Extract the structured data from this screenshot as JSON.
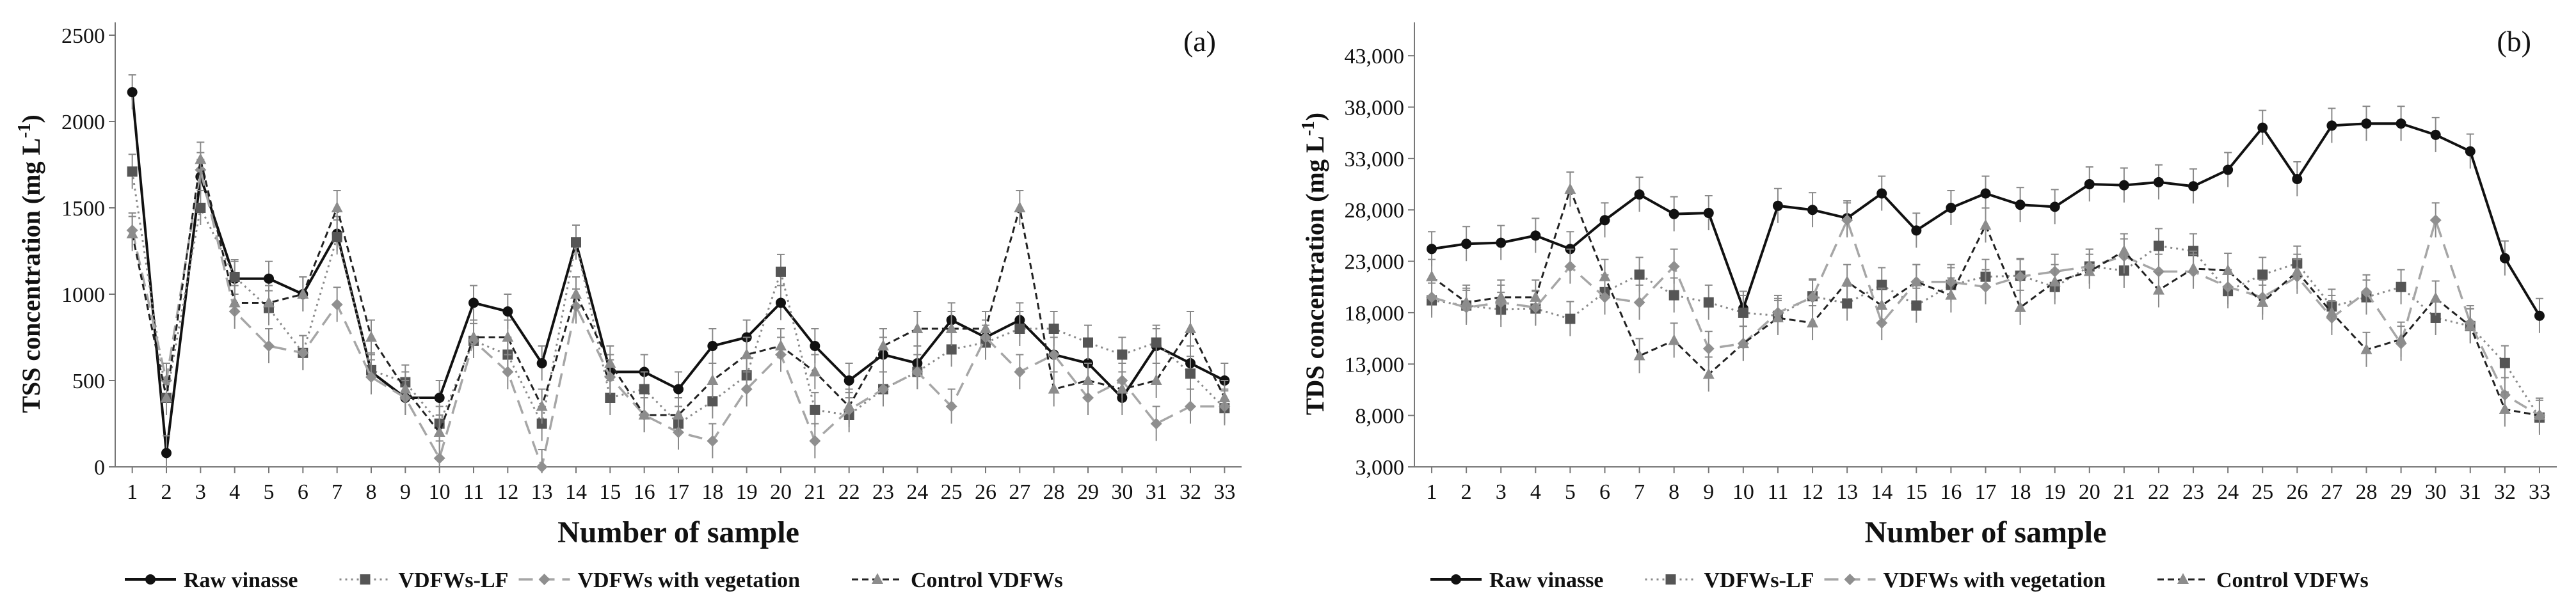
{
  "chart_data": [
    {
      "type": "line",
      "panel_label": "(a)",
      "xlabel": "Number of sample",
      "ylabel": "TSS concentration (mg L",
      "ylabel_sup": "-1",
      "ylabel_close": ")",
      "ylim": [
        0,
        2500
      ],
      "yticks": [
        0,
        500,
        1000,
        1500,
        2000,
        2500
      ],
      "ytick_labels": [
        "0",
        "500",
        "1000",
        "1500",
        "2000",
        "2500"
      ],
      "categories": [
        "1",
        "2",
        "3",
        "4",
        "5",
        "6",
        "7",
        "8",
        "9",
        "10",
        "11",
        "12",
        "13",
        "14",
        "15",
        "16",
        "17",
        "18",
        "19",
        "20",
        "21",
        "22",
        "23",
        "24",
        "25",
        "26",
        "27",
        "28",
        "29",
        "30",
        "31",
        "32",
        "33"
      ],
      "grid": false,
      "legend_position": "bottom",
      "series": [
        {
          "name": "Raw vinasse",
          "values": [
            2170,
            80,
            1680,
            1090,
            1090,
            1000,
            1350,
            550,
            400,
            400,
            950,
            900,
            600,
            1300,
            550,
            550,
            450,
            700,
            750,
            950,
            700,
            500,
            650,
            600,
            850,
            750,
            850,
            650,
            600,
            400,
            700,
            600,
            500
          ]
        },
        {
          "name": "VDFWs-LF",
          "values": [
            1710,
            400,
            1500,
            1100,
            920,
            660,
            1330,
            560,
            490,
            250,
            730,
            650,
            250,
            1300,
            400,
            450,
            250,
            380,
            530,
            1130,
            330,
            300,
            450,
            550,
            680,
            720,
            800,
            800,
            720,
            650,
            720,
            540,
            340
          ]
        },
        {
          "name": "VDFWs with vegetation",
          "values": [
            1370,
            500,
            1720,
            900,
            700,
            660,
            940,
            520,
            400,
            50,
            730,
            550,
            0,
            930,
            520,
            300,
            200,
            150,
            450,
            650,
            150,
            330,
            450,
            550,
            350,
            750,
            550,
            650,
            400,
            500,
            250,
            350,
            350
          ]
        },
        {
          "name": "Control VDFWs",
          "values": [
            1350,
            400,
            1780,
            950,
            950,
            1000,
            1500,
            750,
            450,
            200,
            750,
            750,
            350,
            1000,
            600,
            300,
            300,
            500,
            650,
            700,
            550,
            350,
            700,
            800,
            800,
            800,
            1500,
            450,
            500,
            450,
            500,
            800,
            400
          ]
        }
      ]
    },
    {
      "type": "line",
      "panel_label": "(b)",
      "xlabel": "Number of sample",
      "ylabel": "TDS concentration (mg L",
      "ylabel_sup": "-1",
      "ylabel_close": ")",
      "ylim": [
        3000,
        45000
      ],
      "yticks": [
        3000,
        8000,
        13000,
        18000,
        23000,
        28000,
        33000,
        38000,
        43000
      ],
      "ytick_labels": [
        "3,000",
        "8,000",
        "13,000",
        "18,000",
        "23,000",
        "28,000",
        "33,000",
        "38,000",
        "43,000"
      ],
      "categories": [
        "1",
        "2",
        "3",
        "4",
        "5",
        "6",
        "7",
        "8",
        "9",
        "10",
        "11",
        "12",
        "13",
        "14",
        "15",
        "16",
        "17",
        "18",
        "19",
        "20",
        "21",
        "22",
        "23",
        "24",
        "25",
        "26",
        "27",
        "28",
        "29",
        "30",
        "31",
        "32",
        "33"
      ],
      "grid": false,
      "legend_position": "bottom",
      "series": [
        {
          "name": "Raw vinasse",
          "values": [
            24200,
            24700,
            24800,
            25500,
            24200,
            27000,
            29500,
            27600,
            27700,
            18400,
            28400,
            28000,
            27200,
            29600,
            26000,
            28200,
            29600,
            28500,
            28300,
            30500,
            30400,
            30700,
            30300,
            31900,
            36000,
            31000,
            36200,
            36400,
            36400,
            35300,
            33700,
            23300,
            17700
          ]
        },
        {
          "name": "VDFWs-LF",
          "values": [
            19200,
            18700,
            18300,
            18400,
            17400,
            20000,
            21700,
            19700,
            19000,
            18000,
            17700,
            19600,
            18900,
            20700,
            18700,
            20700,
            21500,
            21600,
            20500,
            22500,
            22100,
            24500,
            24000,
            20100,
            21700,
            22800,
            18600,
            19500,
            20500,
            17500,
            16700,
            13100,
            7800
          ]
        },
        {
          "name": "VDFWs with vegetation",
          "values": [
            19500,
            18500,
            19000,
            18500,
            22500,
            19500,
            19000,
            22500,
            14500,
            15000,
            18000,
            19500,
            27000,
            17000,
            21000,
            21000,
            20500,
            21500,
            22000,
            22500,
            23500,
            22000,
            22000,
            20500,
            19500,
            21500,
            17500,
            20000,
            15000,
            27000,
            17000,
            10000,
            8000
          ]
        },
        {
          "name": "Control VDFWs",
          "values": [
            21500,
            19000,
            19500,
            19500,
            30000,
            21500,
            13800,
            15300,
            12000,
            15000,
            17500,
            17000,
            21000,
            18700,
            21000,
            19700,
            26500,
            18500,
            21000,
            22000,
            24000,
            20200,
            22300,
            22100,
            19000,
            22000,
            18000,
            14400,
            15400,
            19400,
            16700,
            8600,
            8000
          ]
        }
      ]
    }
  ]
}
